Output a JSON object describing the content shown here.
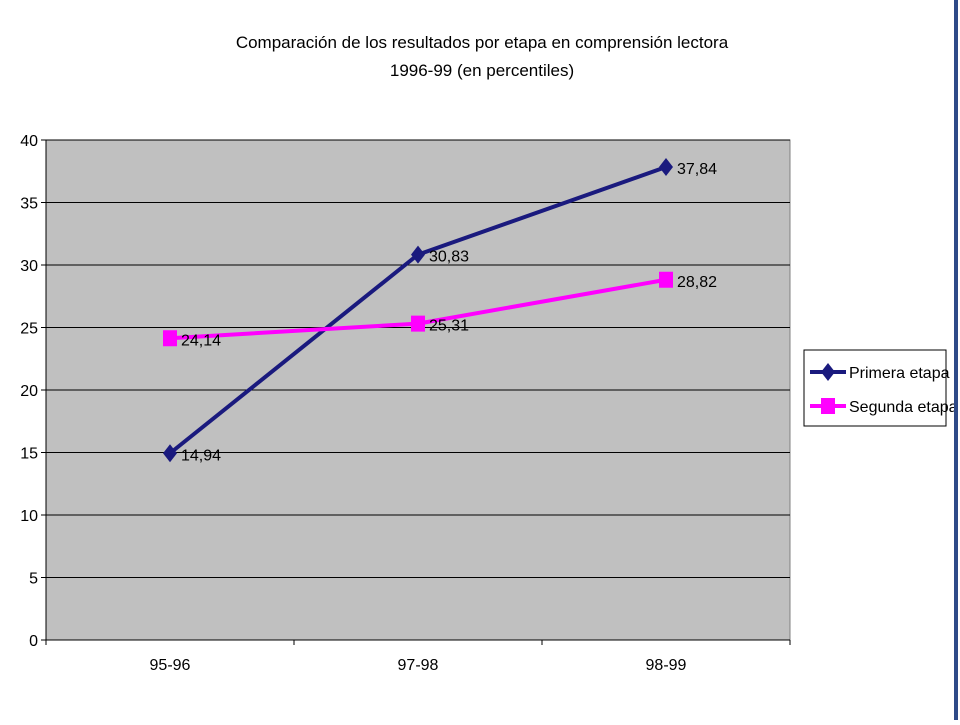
{
  "chart_data": {
    "type": "line",
    "title": "Comparación de los resultados por etapa en comprensión lectora",
    "subtitle": "1996-99 (en percentiles)",
    "xlabel": "",
    "ylabel": "",
    "categories": [
      "95-96",
      "97-98",
      "98-99"
    ],
    "ylim": [
      0,
      40
    ],
    "yticks": [
      0,
      5,
      10,
      15,
      20,
      25,
      30,
      35,
      40
    ],
    "grid": true,
    "legend_position": "right",
    "plot_background": "#c0c0c0",
    "series": [
      {
        "name": "Primera etapa",
        "values": [
          14.94,
          30.83,
          37.84
        ],
        "labels": [
          "14,94",
          "30,83",
          "37,84"
        ],
        "color": "#1a1a7e",
        "marker": "diamond"
      },
      {
        "name": "Segunda etapa",
        "values": [
          24.14,
          25.31,
          28.82
        ],
        "labels": [
          "24,14",
          "25,31",
          "28,82"
        ],
        "color": "#ff00ff",
        "marker": "square"
      }
    ]
  }
}
